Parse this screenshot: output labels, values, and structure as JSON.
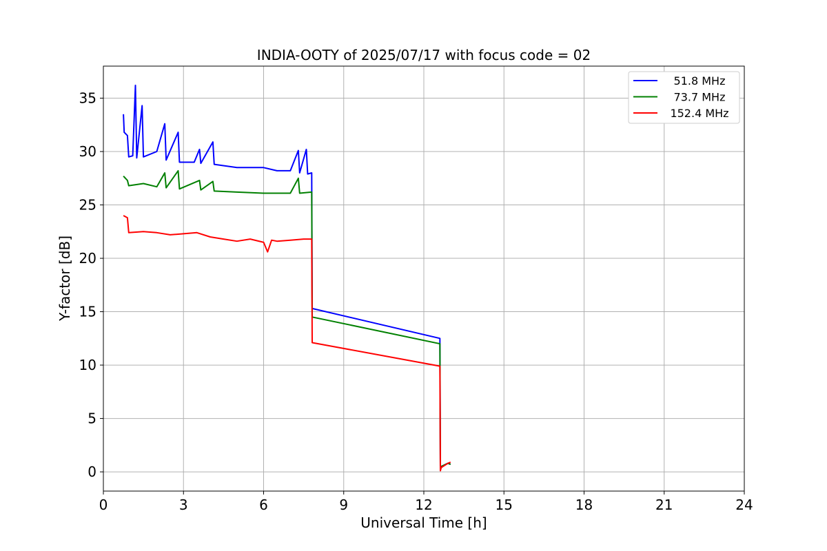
{
  "chart_data": {
    "type": "line",
    "title": "INDIA-OOTY of 2025/07/17 with focus code = 02",
    "xlabel": "Universal Time [h]",
    "ylabel": "Y-factor [dB]",
    "xlim": [
      0,
      24
    ],
    "ylim": [
      -1.8,
      38
    ],
    "xticks": [
      0,
      3,
      6,
      9,
      12,
      15,
      18,
      21,
      24
    ],
    "yticks": [
      0,
      5,
      10,
      15,
      20,
      25,
      30,
      35
    ],
    "grid": true,
    "legend_position": "top-right",
    "series": [
      {
        "name": "51.8 MHz",
        "color": "#0000ff",
        "points": [
          [
            0.75,
            33.5
          ],
          [
            0.78,
            31.8
          ],
          [
            0.9,
            31.5
          ],
          [
            0.95,
            29.5
          ],
          [
            1.1,
            29.6
          ],
          [
            1.2,
            36.2
          ],
          [
            1.25,
            29.4
          ],
          [
            1.45,
            34.3
          ],
          [
            1.5,
            29.5
          ],
          [
            2.0,
            30.0
          ],
          [
            2.3,
            32.6
          ],
          [
            2.35,
            29.2
          ],
          [
            2.8,
            31.8
          ],
          [
            2.85,
            29.0
          ],
          [
            3.4,
            29.0
          ],
          [
            3.6,
            30.2
          ],
          [
            3.65,
            28.9
          ],
          [
            4.1,
            30.9
          ],
          [
            4.15,
            28.8
          ],
          [
            5.0,
            28.5
          ],
          [
            6.0,
            28.5
          ],
          [
            6.5,
            28.2
          ],
          [
            7.0,
            28.2
          ],
          [
            7.3,
            30.1
          ],
          [
            7.35,
            28.0
          ],
          [
            7.6,
            30.2
          ],
          [
            7.65,
            27.9
          ],
          [
            7.8,
            28.0
          ],
          [
            7.82,
            15.3
          ],
          [
            12.6,
            12.5
          ],
          [
            12.62,
            0.3
          ],
          [
            12.65,
            0.5
          ],
          [
            12.9,
            0.8
          ],
          [
            13.0,
            0.7
          ]
        ]
      },
      {
        "name": "73.7 MHz",
        "color": "#008000",
        "points": [
          [
            0.75,
            27.7
          ],
          [
            0.9,
            27.3
          ],
          [
            0.95,
            26.8
          ],
          [
            1.5,
            27.0
          ],
          [
            2.0,
            26.7
          ],
          [
            2.3,
            28.0
          ],
          [
            2.35,
            26.6
          ],
          [
            2.8,
            28.2
          ],
          [
            2.85,
            26.5
          ],
          [
            3.6,
            27.3
          ],
          [
            3.65,
            26.4
          ],
          [
            4.1,
            27.2
          ],
          [
            4.15,
            26.3
          ],
          [
            5.0,
            26.2
          ],
          [
            6.0,
            26.1
          ],
          [
            7.0,
            26.1
          ],
          [
            7.3,
            27.5
          ],
          [
            7.35,
            26.1
          ],
          [
            7.8,
            26.2
          ],
          [
            7.82,
            14.5
          ],
          [
            12.6,
            12.0
          ],
          [
            12.62,
            0.3
          ],
          [
            12.65,
            0.5
          ],
          [
            12.9,
            0.8
          ],
          [
            13.0,
            0.7
          ]
        ]
      },
      {
        "name": "152.4 MHz",
        "color": "#ff0000",
        "points": [
          [
            0.75,
            24.0
          ],
          [
            0.9,
            23.8
          ],
          [
            0.95,
            22.4
          ],
          [
            1.5,
            22.5
          ],
          [
            2.0,
            22.4
          ],
          [
            2.5,
            22.2
          ],
          [
            3.0,
            22.3
          ],
          [
            3.5,
            22.4
          ],
          [
            4.0,
            22.0
          ],
          [
            4.5,
            21.8
          ],
          [
            5.0,
            21.6
          ],
          [
            5.5,
            21.8
          ],
          [
            6.0,
            21.5
          ],
          [
            6.15,
            20.6
          ],
          [
            6.3,
            21.7
          ],
          [
            6.5,
            21.6
          ],
          [
            7.0,
            21.7
          ],
          [
            7.5,
            21.8
          ],
          [
            7.8,
            21.8
          ],
          [
            7.82,
            12.1
          ],
          [
            12.6,
            9.9
          ],
          [
            12.62,
            0.1
          ],
          [
            12.65,
            0.4
          ],
          [
            12.9,
            0.8
          ],
          [
            13.0,
            0.9
          ]
        ]
      }
    ]
  }
}
